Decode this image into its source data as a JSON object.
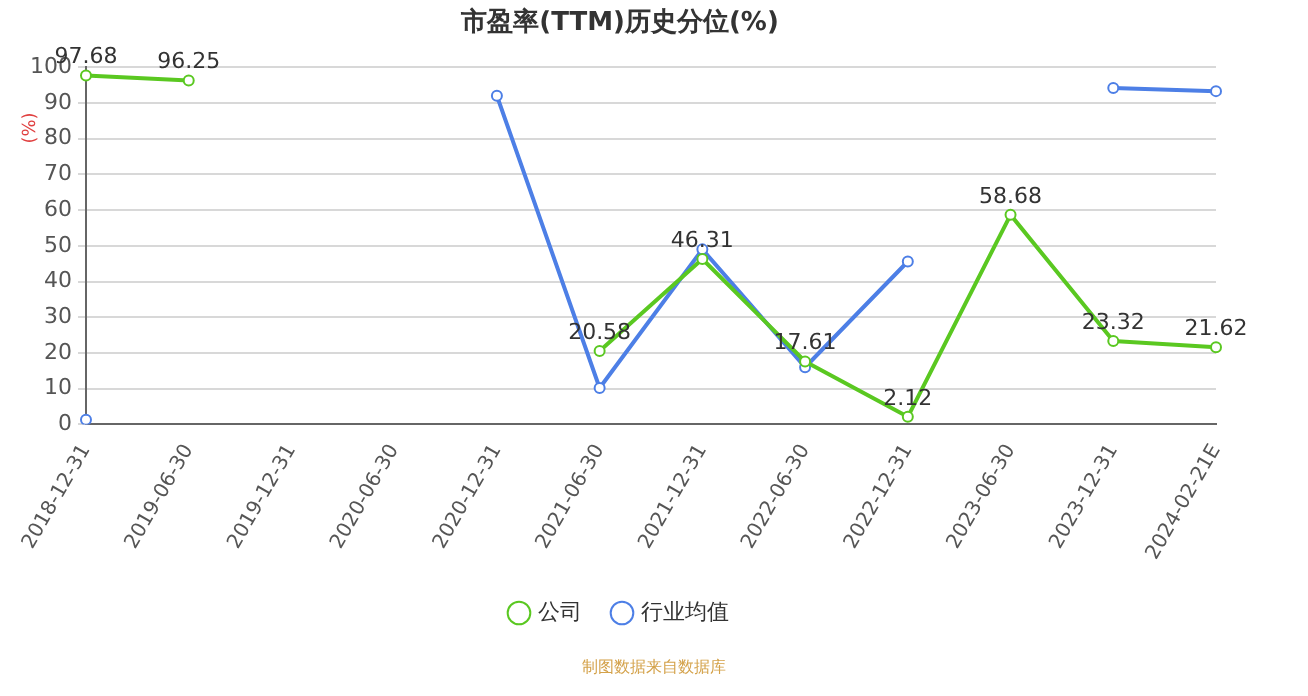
{
  "chart_data": {
    "type": "line",
    "title": "市盈率(TTM)历史分位(%)",
    "ylabel": "(%)",
    "categories": [
      "2018-12-31",
      "2019-06-30",
      "2019-12-31",
      "2020-06-30",
      "2020-12-31",
      "2021-06-30",
      "2021-12-31",
      "2022-06-30",
      "2022-12-31",
      "2023-06-30",
      "2023-12-31",
      "2024-02-21E"
    ],
    "series": [
      {
        "name": "公司",
        "color": "#5ac821",
        "values": [
          97.68,
          96.25,
          null,
          null,
          null,
          20.58,
          46.31,
          17.61,
          2.12,
          58.68,
          23.32,
          21.62
        ],
        "value_labels": [
          "97.68",
          "96.25",
          null,
          null,
          null,
          "20.58",
          "46.31",
          "17.61",
          "2.12",
          "58.68",
          "23.32",
          "21.62"
        ]
      },
      {
        "name": "行业均值",
        "color": "#4d7fe6",
        "values": [
          1.3,
          null,
          null,
          null,
          92,
          10.2,
          49,
          16,
          45.6,
          null,
          94.2,
          93.3
        ]
      }
    ],
    "ylim": [
      0,
      100
    ],
    "yticks": [
      0,
      10,
      20,
      30,
      40,
      50,
      60,
      70,
      80,
      90,
      100
    ],
    "grid": "y",
    "legend": "bottom",
    "marker": "circle",
    "line_style": "solid",
    "annotations": [
      "制图数据来自数据库"
    ]
  }
}
